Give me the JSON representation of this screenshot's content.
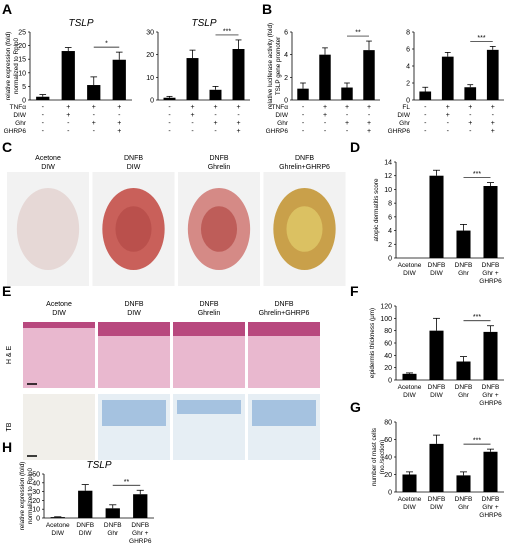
{
  "panel_letters": {
    "A": "A",
    "B": "B",
    "C": "C",
    "D": "D",
    "E": "E",
    "F": "F",
    "G": "G",
    "H": "H"
  },
  "treat_row_labels": [
    "TNFα",
    "DIW",
    "Ghr",
    "GHRP6"
  ],
  "fl_row_labels": [
    "FL",
    "DIW",
    "Ghr",
    "GHRP6"
  ],
  "treat_matrix": [
    [
      "-",
      "+",
      "+",
      "+"
    ],
    [
      "-",
      "+",
      "-",
      "-"
    ],
    [
      "-",
      "-",
      "+",
      "+"
    ],
    [
      "-",
      "-",
      "-",
      "+"
    ]
  ],
  "panel_c": {
    "labels": [
      [
        "Acetone",
        "DIW"
      ],
      [
        "DNFB",
        "DIW"
      ],
      [
        "DNFB",
        "Ghrelin"
      ],
      [
        "DNFB",
        "Ghrelin+GHRP6"
      ]
    ],
    "colors": [
      "#e6d8d6",
      "#c9605a",
      "#d58a86",
      "#c9a04a"
    ]
  },
  "panel_e": {
    "labels": [
      [
        "Acetone",
        "DIW"
      ],
      [
        "DNFB",
        "DIW"
      ],
      [
        "DNFB",
        "Ghrelin"
      ],
      [
        "DNFB",
        "Ghrelin+GHRP6"
      ]
    ],
    "row_labels": [
      "H & E",
      "TB"
    ]
  },
  "group_labels_4": [
    [
      "Acetone",
      "DIW"
    ],
    [
      "DNFB",
      "DIW"
    ],
    [
      "DNFB",
      "Ghr"
    ],
    [
      "DNFB",
      "Ghr +",
      "GHRP6"
    ]
  ],
  "group_labels_h": [
    [
      "Acetone",
      "DIW"
    ],
    [
      "DNFB",
      "DIW"
    ],
    [
      "DNFB",
      "Ghr"
    ],
    [
      "DNFB",
      "Ghr +",
      "GHRP6"
    ]
  ],
  "chart_data": [
    {
      "id": "A1",
      "type": "bar",
      "title": "TSLP",
      "ylabel": [
        "relative expression (fold)",
        "normalized to Rplp0"
      ],
      "ylim": [
        0,
        25
      ],
      "yticks": [
        0,
        5,
        10,
        15,
        20,
        25
      ],
      "values": [
        1.2,
        18,
        5.5,
        14.8
      ],
      "errors": [
        0.8,
        1.3,
        3,
        2.8
      ],
      "sig": {
        "from": 2,
        "to": 3,
        "label": "*"
      }
    },
    {
      "id": "A2",
      "type": "bar",
      "title": "TSLP",
      "ylabel": [],
      "ylim": [
        0,
        30
      ],
      "yticks": [
        0,
        10,
        20,
        30
      ],
      "values": [
        1,
        18.5,
        4.5,
        22.5
      ],
      "errors": [
        0.6,
        3.5,
        1.5,
        4
      ],
      "sig": {
        "from": 2,
        "to": 3,
        "label": "***"
      }
    },
    {
      "id": "B1",
      "type": "bar",
      "title": "",
      "ylabel": [
        "relative luciferase activity (fold)",
        "TSLP gene promoter"
      ],
      "ylim": [
        0,
        6
      ],
      "yticks": [
        0,
        2,
        4,
        6
      ],
      "values": [
        1,
        4,
        1.1,
        4.4
      ],
      "errors": [
        0.5,
        0.6,
        0.4,
        0.8
      ],
      "sig": {
        "from": 2,
        "to": 3,
        "label": "**"
      }
    },
    {
      "id": "B2",
      "type": "bar",
      "title": "",
      "ylabel": [],
      "ylim": [
        0,
        8
      ],
      "yticks": [
        0,
        2,
        4,
        6,
        8
      ],
      "values": [
        1,
        5.1,
        1.5,
        5.9
      ],
      "errors": [
        0.5,
        0.5,
        0.3,
        0.4
      ],
      "sig": {
        "from": 2,
        "to": 3,
        "label": "***"
      }
    },
    {
      "id": "D",
      "type": "bar",
      "title": "",
      "ylabel": [
        "atopic dermatitis score"
      ],
      "ylim": [
        0,
        14
      ],
      "yticks": [
        0,
        2,
        4,
        6,
        8,
        10,
        12,
        14
      ],
      "values": [
        0,
        12,
        4,
        10.5
      ],
      "errors": [
        0,
        0.8,
        0.9,
        0.5
      ],
      "sig": {
        "from": 2,
        "to": 3,
        "label": "***"
      }
    },
    {
      "id": "F",
      "type": "bar",
      "title": "",
      "ylabel": [
        "epidermis thickness (μm)"
      ],
      "ylim": [
        0,
        120
      ],
      "yticks": [
        0,
        20,
        40,
        60,
        80,
        100,
        120
      ],
      "values": [
        10,
        80,
        30,
        78
      ],
      "errors": [
        1.5,
        20,
        8,
        10
      ],
      "sig": {
        "from": 2,
        "to": 3,
        "label": "***"
      }
    },
    {
      "id": "G",
      "type": "bar",
      "title": "",
      "ylabel": [
        "number of mast cells",
        "(no./section)"
      ],
      "ylim": [
        0,
        80
      ],
      "yticks": [
        0,
        20,
        40,
        60,
        80
      ],
      "values": [
        20,
        55,
        19,
        46
      ],
      "errors": [
        3,
        10,
        4,
        3
      ],
      "sig": {
        "from": 2,
        "to": 3,
        "label": "***"
      }
    },
    {
      "id": "H",
      "type": "bar",
      "title": "TSLP",
      "ylabel": [
        "relative expression (fold)",
        "normalized to Rplp0"
      ],
      "ylim": [
        0,
        50
      ],
      "yticks": [
        0,
        10,
        20,
        30,
        40,
        50
      ],
      "values": [
        1,
        31,
        11,
        27
      ],
      "errors": [
        0.4,
        7,
        4,
        4.5
      ],
      "sig": {
        "from": 2,
        "to": 3,
        "label": "**"
      }
    }
  ]
}
